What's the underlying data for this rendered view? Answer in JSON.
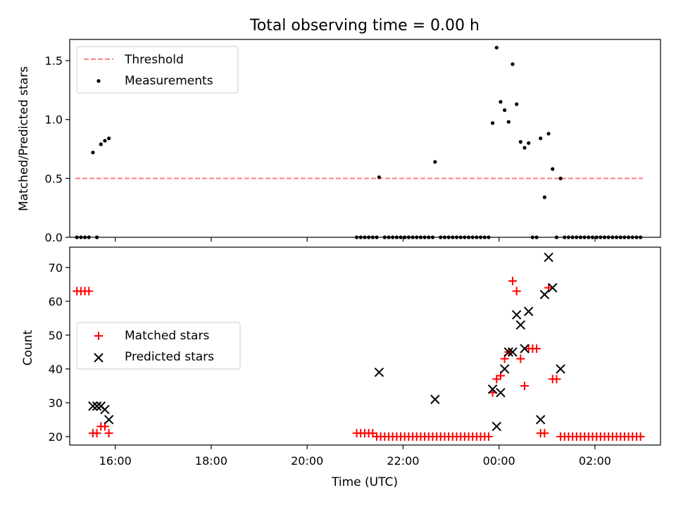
{
  "chart_data": [
    {
      "type": "scatter",
      "panel": "top",
      "title": "Total observing time = 0.00 h",
      "ylabel": "Matched/Predicted stars",
      "xlabel": "",
      "xlim": [
        "15:03",
        "03:22"
      ],
      "ylim": [
        0,
        1.68
      ],
      "yticks": [
        0.0,
        0.5,
        1.0,
        1.5
      ],
      "ytick_labels": [
        "0.0",
        "0.5",
        "1.0",
        "1.5"
      ],
      "legend": {
        "placement": "top-left",
        "entries": [
          "Threshold",
          "Measurements"
        ]
      },
      "threshold": {
        "name": "Threshold",
        "y": 0.5,
        "x_start": "15:10",
        "x_end": "03:00",
        "color": "#ff7f7f"
      },
      "series": [
        {
          "name": "Measurements",
          "color": "#000000",
          "points": [
            [
              "15:12",
              0.0
            ],
            [
              "15:17",
              0.0
            ],
            [
              "15:22",
              0.0
            ],
            [
              "15:27",
              0.0
            ],
            [
              "15:32",
              0.72
            ],
            [
              "15:37",
              0.0
            ],
            [
              "15:42",
              0.79
            ],
            [
              "15:47",
              0.82
            ],
            [
              "15:52",
              0.84
            ],
            [
              "21:02",
              0.0
            ],
            [
              "21:07",
              0.0
            ],
            [
              "21:12",
              0.0
            ],
            [
              "21:17",
              0.0
            ],
            [
              "21:22",
              0.0
            ],
            [
              "21:27",
              0.0
            ],
            [
              "21:30",
              0.51
            ],
            [
              "21:37",
              0.0
            ],
            [
              "21:42",
              0.0
            ],
            [
              "21:47",
              0.0
            ],
            [
              "21:52",
              0.0
            ],
            [
              "21:57",
              0.0
            ],
            [
              "22:02",
              0.0
            ],
            [
              "22:07",
              0.0
            ],
            [
              "22:12",
              0.0
            ],
            [
              "22:17",
              0.0
            ],
            [
              "22:22",
              0.0
            ],
            [
              "22:27",
              0.0
            ],
            [
              "22:32",
              0.0
            ],
            [
              "22:37",
              0.0
            ],
            [
              "22:40",
              0.64
            ],
            [
              "22:47",
              0.0
            ],
            [
              "22:52",
              0.0
            ],
            [
              "22:57",
              0.0
            ],
            [
              "23:02",
              0.0
            ],
            [
              "23:07",
              0.0
            ],
            [
              "23:12",
              0.0
            ],
            [
              "23:17",
              0.0
            ],
            [
              "23:22",
              0.0
            ],
            [
              "23:27",
              0.0
            ],
            [
              "23:32",
              0.0
            ],
            [
              "23:37",
              0.0
            ],
            [
              "23:42",
              0.0
            ],
            [
              "23:47",
              0.0
            ],
            [
              "23:52",
              0.97
            ],
            [
              "23:57",
              1.61
            ],
            [
              "00:02",
              1.15
            ],
            [
              "00:07",
              1.08
            ],
            [
              "00:12",
              0.98
            ],
            [
              "00:17",
              1.47
            ],
            [
              "00:22",
              1.13
            ],
            [
              "00:27",
              0.81
            ],
            [
              "00:32",
              0.76
            ],
            [
              "00:37",
              0.8
            ],
            [
              "00:42",
              0.0
            ],
            [
              "00:47",
              0.0
            ],
            [
              "00:52",
              0.84
            ],
            [
              "00:57",
              0.34
            ],
            [
              "01:02",
              0.88
            ],
            [
              "01:07",
              0.58
            ],
            [
              "01:12",
              0.0
            ],
            [
              "01:17",
              0.5
            ],
            [
              "01:22",
              0.0
            ],
            [
              "01:27",
              0.0
            ],
            [
              "01:32",
              0.0
            ],
            [
              "01:37",
              0.0
            ],
            [
              "01:42",
              0.0
            ],
            [
              "01:47",
              0.0
            ],
            [
              "01:52",
              0.0
            ],
            [
              "01:57",
              0.0
            ],
            [
              "02:02",
              0.0
            ],
            [
              "02:07",
              0.0
            ],
            [
              "02:12",
              0.0
            ],
            [
              "02:17",
              0.0
            ],
            [
              "02:22",
              0.0
            ],
            [
              "02:27",
              0.0
            ],
            [
              "02:32",
              0.0
            ],
            [
              "02:37",
              0.0
            ],
            [
              "02:42",
              0.0
            ],
            [
              "02:47",
              0.0
            ],
            [
              "02:52",
              0.0
            ],
            [
              "02:57",
              0.0
            ]
          ]
        }
      ]
    },
    {
      "type": "scatter",
      "panel": "bottom",
      "title": "",
      "xlabel": "Time (UTC)",
      "ylabel": "Count",
      "xlim": [
        "15:03",
        "03:22"
      ],
      "ylim": [
        17.5,
        76.0
      ],
      "xticks": [
        "16:00",
        "18:00",
        "20:00",
        "22:00",
        "00:00",
        "02:00"
      ],
      "yticks": [
        20,
        30,
        40,
        50,
        60,
        70
      ],
      "ytick_labels": [
        "20",
        "30",
        "40",
        "50",
        "60",
        "70"
      ],
      "legend": {
        "placement": "center-left",
        "entries": [
          "Matched stars",
          "Predicted stars"
        ]
      },
      "series": [
        {
          "name": "Matched stars",
          "marker": "plus",
          "color": "#ff0000",
          "points": [
            [
              "15:12",
              63
            ],
            [
              "15:17",
              63
            ],
            [
              "15:22",
              63
            ],
            [
              "15:27",
              63
            ],
            [
              "15:32",
              21
            ],
            [
              "15:37",
              21
            ],
            [
              "15:42",
              23
            ],
            [
              "15:47",
              23
            ],
            [
              "15:52",
              21
            ],
            [
              "21:02",
              21
            ],
            [
              "21:07",
              21
            ],
            [
              "21:12",
              21
            ],
            [
              "21:17",
              21
            ],
            [
              "21:22",
              21
            ],
            [
              "21:27",
              20
            ],
            [
              "21:32",
              20
            ],
            [
              "21:37",
              20
            ],
            [
              "21:42",
              20
            ],
            [
              "21:47",
              20
            ],
            [
              "21:52",
              20
            ],
            [
              "21:57",
              20
            ],
            [
              "22:02",
              20
            ],
            [
              "22:07",
              20
            ],
            [
              "22:12",
              20
            ],
            [
              "22:17",
              20
            ],
            [
              "22:22",
              20
            ],
            [
              "22:27",
              20
            ],
            [
              "22:32",
              20
            ],
            [
              "22:37",
              20
            ],
            [
              "22:42",
              20
            ],
            [
              "22:47",
              20
            ],
            [
              "22:52",
              20
            ],
            [
              "22:57",
              20
            ],
            [
              "23:02",
              20
            ],
            [
              "23:07",
              20
            ],
            [
              "23:12",
              20
            ],
            [
              "23:17",
              20
            ],
            [
              "23:22",
              20
            ],
            [
              "23:27",
              20
            ],
            [
              "23:32",
              20
            ],
            [
              "23:37",
              20
            ],
            [
              "23:42",
              20
            ],
            [
              "23:47",
              20
            ],
            [
              "23:52",
              33
            ],
            [
              "23:57",
              37
            ],
            [
              "00:02",
              38
            ],
            [
              "00:07",
              43
            ],
            [
              "00:12",
              45
            ],
            [
              "00:17",
              66
            ],
            [
              "00:22",
              63
            ],
            [
              "00:27",
              43
            ],
            [
              "00:32",
              35
            ],
            [
              "00:37",
              46
            ],
            [
              "00:42",
              46
            ],
            [
              "00:47",
              46
            ],
            [
              "00:52",
              21
            ],
            [
              "00:57",
              21
            ],
            [
              "01:02",
              64
            ],
            [
              "01:07",
              37
            ],
            [
              "01:12",
              37
            ],
            [
              "01:17",
              20
            ],
            [
              "01:22",
              20
            ],
            [
              "01:27",
              20
            ],
            [
              "01:32",
              20
            ],
            [
              "01:37",
              20
            ],
            [
              "01:42",
              20
            ],
            [
              "01:47",
              20
            ],
            [
              "01:52",
              20
            ],
            [
              "01:57",
              20
            ],
            [
              "02:02",
              20
            ],
            [
              "02:07",
              20
            ],
            [
              "02:12",
              20
            ],
            [
              "02:17",
              20
            ],
            [
              "02:22",
              20
            ],
            [
              "02:27",
              20
            ],
            [
              "02:32",
              20
            ],
            [
              "02:37",
              20
            ],
            [
              "02:42",
              20
            ],
            [
              "02:47",
              20
            ],
            [
              "02:52",
              20
            ],
            [
              "02:57",
              20
            ]
          ]
        },
        {
          "name": "Predicted stars",
          "marker": "x",
          "color": "#000000",
          "points": [
            [
              "15:32",
              29
            ],
            [
              "15:37",
              29
            ],
            [
              "15:42",
              29
            ],
            [
              "15:47",
              28
            ],
            [
              "15:52",
              25
            ],
            [
              "21:30",
              39
            ],
            [
              "22:40",
              31
            ],
            [
              "23:52",
              34
            ],
            [
              "23:57",
              23
            ],
            [
              "00:02",
              33
            ],
            [
              "00:07",
              40
            ],
            [
              "00:12",
              45
            ],
            [
              "00:17",
              45
            ],
            [
              "00:22",
              56
            ],
            [
              "00:27",
              53
            ],
            [
              "00:32",
              46
            ],
            [
              "00:37",
              57
            ],
            [
              "00:52",
              25
            ],
            [
              "00:57",
              62
            ],
            [
              "01:02",
              73
            ],
            [
              "01:07",
              64
            ],
            [
              "01:17",
              40
            ]
          ]
        }
      ]
    }
  ]
}
